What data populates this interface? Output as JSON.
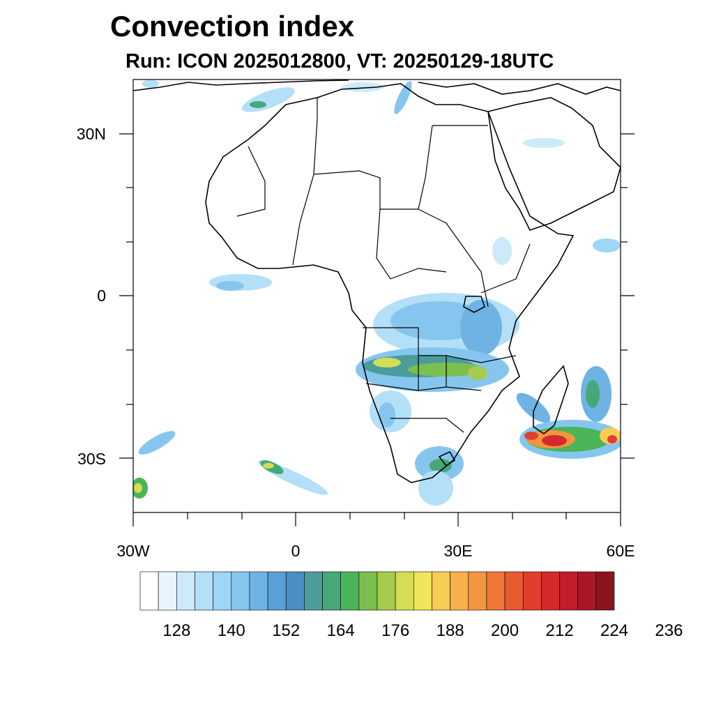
{
  "header": {
    "title": "Convection index",
    "subtitle": "Run: ICON 2025012800,  VT: 20250129-18UTC"
  },
  "map": {
    "projection": "lat-lon",
    "lon_range": [
      -30,
      60
    ],
    "lat_range": [
      -40,
      40
    ],
    "lat_labels": [
      "30N",
      "0",
      "30S"
    ],
    "lon_labels": [
      "30W",
      "0",
      "30E",
      "60E"
    ]
  },
  "colorbar": {
    "colors": [
      "#ffffff",
      "#e8f5fd",
      "#cdeafa",
      "#b3e0f8",
      "#9dd6f6",
      "#86c6ee",
      "#6eb3e4",
      "#5a9fd6",
      "#4a8ec2",
      "#4c9c9b",
      "#46a878",
      "#4bb458",
      "#7bbf4f",
      "#a6cc4e",
      "#d3dd55",
      "#f1e45a",
      "#f7cc55",
      "#f6b04c",
      "#f49540",
      "#ef7637",
      "#e85a30",
      "#df3f2c",
      "#d42a2c",
      "#c11e2c",
      "#a81828",
      "#8a1420"
    ],
    "labels": [
      "128",
      "140",
      "152",
      "164",
      "176",
      "188",
      "200",
      "212",
      "224",
      "236"
    ]
  }
}
